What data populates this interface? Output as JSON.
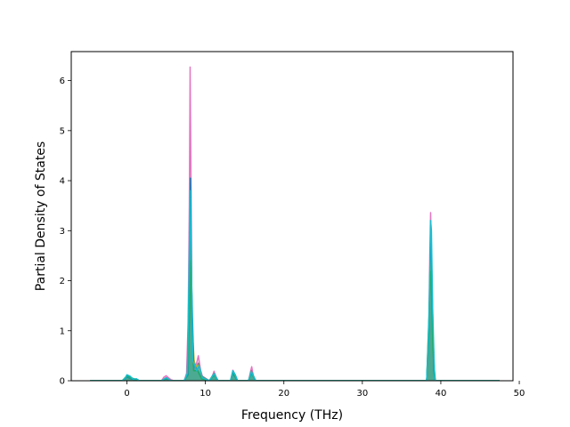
{
  "chart_data": {
    "type": "line",
    "xlabel": "Frequency (THz)",
    "ylabel": "Partial Density of States",
    "xlim": [
      -7.1,
      49.2
    ],
    "ylim": [
      0,
      6.58
    ],
    "x_ticks": [
      0,
      10,
      20,
      30,
      40,
      50
    ],
    "y_ticks": [
      0,
      1,
      2,
      3,
      4,
      5,
      6
    ],
    "grid": false,
    "series": [
      {
        "color": "#e377c2",
        "points": [
          [
            -4.7,
            0
          ],
          [
            -0.6,
            0
          ],
          [
            -0.2,
            0.05
          ],
          [
            0,
            0.1
          ],
          [
            0.4,
            0.08
          ],
          [
            0.8,
            0.02
          ],
          [
            1.2,
            0.03
          ],
          [
            1.6,
            0
          ],
          [
            4.4,
            0
          ],
          [
            4.7,
            0.07
          ],
          [
            5.0,
            0.1
          ],
          [
            5.3,
            0.06
          ],
          [
            5.6,
            0.02
          ],
          [
            6.0,
            0
          ],
          [
            7.3,
            0
          ],
          [
            7.6,
            0.15
          ],
          [
            7.8,
            1.2
          ],
          [
            7.95,
            3.5
          ],
          [
            8.05,
            6.27
          ],
          [
            8.15,
            4.2
          ],
          [
            8.3,
            0.9
          ],
          [
            8.5,
            0.2
          ],
          [
            8.8,
            0.3
          ],
          [
            9.1,
            0.5
          ],
          [
            9.4,
            0.2
          ],
          [
            9.7,
            0.05
          ],
          [
            10.5,
            0
          ],
          [
            10.9,
            0.1
          ],
          [
            11.1,
            0.19
          ],
          [
            11.3,
            0.1
          ],
          [
            11.6,
            0
          ],
          [
            13.2,
            0
          ],
          [
            13.5,
            0.21
          ],
          [
            13.8,
            0.12
          ],
          [
            14.1,
            0
          ],
          [
            15.5,
            0
          ],
          [
            15.8,
            0.22
          ],
          [
            15.9,
            0.28
          ],
          [
            16.1,
            0.1
          ],
          [
            16.4,
            0
          ],
          [
            38.2,
            0
          ],
          [
            38.45,
            0.8
          ],
          [
            38.6,
            2.5
          ],
          [
            38.7,
            3.36
          ],
          [
            38.8,
            2.6
          ],
          [
            38.9,
            1.2
          ],
          [
            39.1,
            0.1
          ],
          [
            39.3,
            0
          ],
          [
            47.5,
            0
          ]
        ]
      },
      {
        "color": "#7f7f7f",
        "points": [
          [
            -4.7,
            0
          ],
          [
            -0.6,
            0
          ],
          [
            -0.2,
            0.04
          ],
          [
            0,
            0.09
          ],
          [
            0.4,
            0.07
          ],
          [
            0.8,
            0.02
          ],
          [
            1.6,
            0
          ],
          [
            4.4,
            0
          ],
          [
            5.0,
            0.06
          ],
          [
            5.6,
            0
          ],
          [
            7.3,
            0
          ],
          [
            7.7,
            0.12
          ],
          [
            7.9,
            1.8
          ],
          [
            8.05,
            3.2
          ],
          [
            8.2,
            2.0
          ],
          [
            8.4,
            0.5
          ],
          [
            8.8,
            0.25
          ],
          [
            9.1,
            0.35
          ],
          [
            9.5,
            0.1
          ],
          [
            10.5,
            0
          ],
          [
            11.1,
            0.15
          ],
          [
            11.6,
            0
          ],
          [
            13.2,
            0
          ],
          [
            13.5,
            0.17
          ],
          [
            14.1,
            0
          ],
          [
            15.5,
            0
          ],
          [
            15.85,
            0.2
          ],
          [
            16.4,
            0
          ],
          [
            38.2,
            0
          ],
          [
            38.5,
            1.2
          ],
          [
            38.7,
            2.9
          ],
          [
            38.85,
            2.0
          ],
          [
            39.1,
            0.2
          ],
          [
            39.3,
            0
          ],
          [
            47.5,
            0
          ]
        ]
      },
      {
        "color": "#bcbd22",
        "points": [
          [
            -4.7,
            0
          ],
          [
            -0.6,
            0
          ],
          [
            0,
            0.08
          ],
          [
            0.5,
            0.05
          ],
          [
            1.6,
            0
          ],
          [
            4.4,
            0
          ],
          [
            5.0,
            0.05
          ],
          [
            5.6,
            0
          ],
          [
            7.3,
            0
          ],
          [
            7.8,
            0.1
          ],
          [
            7.95,
            1.5
          ],
          [
            8.1,
            2.7
          ],
          [
            8.3,
            1.1
          ],
          [
            8.6,
            0.3
          ],
          [
            9.1,
            0.3
          ],
          [
            9.6,
            0.05
          ],
          [
            10.5,
            0
          ],
          [
            11.1,
            0.13
          ],
          [
            11.6,
            0
          ],
          [
            13.2,
            0
          ],
          [
            13.5,
            0.15
          ],
          [
            14.1,
            0
          ],
          [
            15.5,
            0
          ],
          [
            15.85,
            0.17
          ],
          [
            16.4,
            0
          ],
          [
            38.2,
            0
          ],
          [
            38.55,
            1.6
          ],
          [
            38.75,
            3.0
          ],
          [
            38.9,
            1.4
          ],
          [
            39.2,
            0.1
          ],
          [
            39.3,
            0
          ],
          [
            47.5,
            0
          ]
        ]
      },
      {
        "color": "#1f77b4",
        "points": [
          [
            -4.7,
            0
          ],
          [
            -0.6,
            0
          ],
          [
            0,
            0.07
          ],
          [
            0.5,
            0.04
          ],
          [
            1.6,
            0
          ],
          [
            4.4,
            0
          ],
          [
            5.0,
            0.04
          ],
          [
            5.6,
            0
          ],
          [
            7.3,
            0
          ],
          [
            7.8,
            0.12
          ],
          [
            7.95,
            2.2
          ],
          [
            8.1,
            4.05
          ],
          [
            8.25,
            1.9
          ],
          [
            8.5,
            0.3
          ],
          [
            9.0,
            0.22
          ],
          [
            9.5,
            0.05
          ],
          [
            10.5,
            0
          ],
          [
            11.1,
            0.11
          ],
          [
            11.6,
            0
          ],
          [
            13.2,
            0
          ],
          [
            13.5,
            0.14
          ],
          [
            14.1,
            0
          ],
          [
            15.5,
            0
          ],
          [
            15.85,
            0.15
          ],
          [
            16.4,
            0
          ],
          [
            38.2,
            0
          ],
          [
            38.5,
            1.0
          ],
          [
            38.7,
            3.1
          ],
          [
            38.85,
            2.2
          ],
          [
            39.1,
            0.2
          ],
          [
            39.3,
            0
          ],
          [
            47.5,
            0
          ]
        ]
      },
      {
        "color": "#2ca02c",
        "points": [
          [
            -4.7,
            0
          ],
          [
            -0.6,
            0
          ],
          [
            0,
            0.1
          ],
          [
            0.5,
            0.06
          ],
          [
            1.6,
            0
          ],
          [
            4.4,
            0
          ],
          [
            5.0,
            0.05
          ],
          [
            5.6,
            0
          ],
          [
            7.3,
            0
          ],
          [
            7.7,
            0.14
          ],
          [
            7.9,
            1.0
          ],
          [
            8.05,
            2.4
          ],
          [
            8.2,
            1.4
          ],
          [
            8.5,
            0.2
          ],
          [
            9.0,
            0.2
          ],
          [
            9.5,
            0.04
          ],
          [
            10.5,
            0
          ],
          [
            11.1,
            0.12
          ],
          [
            11.6,
            0
          ],
          [
            13.2,
            0
          ],
          [
            13.5,
            0.18
          ],
          [
            14.1,
            0
          ],
          [
            15.5,
            0
          ],
          [
            15.85,
            0.16
          ],
          [
            16.4,
            0
          ],
          [
            38.2,
            0
          ],
          [
            38.45,
            0.9
          ],
          [
            38.65,
            2.2
          ],
          [
            38.8,
            2.0
          ],
          [
            39.0,
            0.6
          ],
          [
            39.3,
            0
          ],
          [
            47.5,
            0
          ]
        ]
      },
      {
        "color": "#17becf",
        "points": [
          [
            -4.7,
            0
          ],
          [
            -0.6,
            0
          ],
          [
            -0.2,
            0.06
          ],
          [
            0,
            0.12
          ],
          [
            0.4,
            0.09
          ],
          [
            0.8,
            0.03
          ],
          [
            1.2,
            0.04
          ],
          [
            1.6,
            0
          ],
          [
            4.4,
            0
          ],
          [
            5.0,
            0.06
          ],
          [
            5.6,
            0
          ],
          [
            7.3,
            0
          ],
          [
            7.7,
            0.15
          ],
          [
            7.9,
            2.0
          ],
          [
            8.05,
            3.8
          ],
          [
            8.2,
            2.3
          ],
          [
            8.4,
            0.4
          ],
          [
            8.9,
            0.2
          ],
          [
            9.2,
            0.3
          ],
          [
            9.6,
            0.06
          ],
          [
            10.5,
            0
          ],
          [
            11.1,
            0.14
          ],
          [
            11.6,
            0
          ],
          [
            13.2,
            0
          ],
          [
            13.5,
            0.2
          ],
          [
            13.8,
            0.12
          ],
          [
            14.1,
            0
          ],
          [
            15.5,
            0
          ],
          [
            15.85,
            0.18
          ],
          [
            16.4,
            0
          ],
          [
            38.2,
            0
          ],
          [
            38.5,
            1.3
          ],
          [
            38.7,
            3.2
          ],
          [
            38.8,
            3.0
          ],
          [
            38.95,
            1.5
          ],
          [
            39.2,
            0.1
          ],
          [
            39.3,
            0
          ],
          [
            47.5,
            0
          ]
        ]
      }
    ]
  }
}
